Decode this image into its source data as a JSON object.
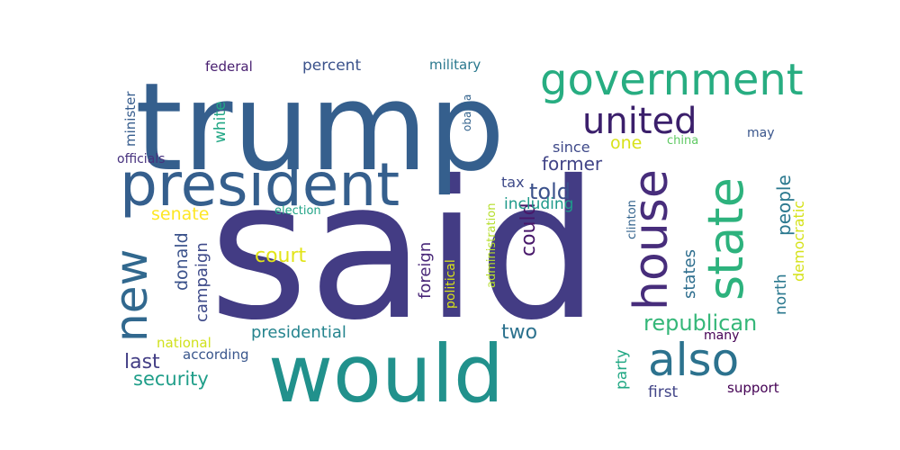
{
  "words": [
    {
      "text": "said",
      "weight": 1.0,
      "color": "#433c84",
      "vertical": false
    },
    {
      "text": "trump",
      "weight": 0.74,
      "color": "#355f8d",
      "vertical": false
    },
    {
      "text": "would",
      "weight": 0.55,
      "color": "#21918c",
      "vertical": false
    },
    {
      "text": "president",
      "weight": 0.48,
      "color": "#355f8d",
      "vertical": false
    },
    {
      "text": "house",
      "weight": 0.38,
      "color": "#472d7b",
      "vertical": true
    },
    {
      "text": "state",
      "weight": 0.37,
      "color": "#2db27d",
      "vertical": true
    },
    {
      "text": "government",
      "weight": 0.33,
      "color": "#27ad81",
      "vertical": false
    },
    {
      "text": "new",
      "weight": 0.33,
      "color": "#31688e",
      "vertical": true
    },
    {
      "text": "also",
      "weight": 0.3,
      "color": "#2c728e",
      "vertical": false
    },
    {
      "text": "united",
      "weight": 0.26,
      "color": "#3b1f6b",
      "vertical": false
    },
    {
      "text": "republican",
      "weight": 0.17,
      "color": "#35b779",
      "vertical": false
    },
    {
      "text": "could",
      "weight": 0.15,
      "color": "#48186a",
      "vertical": true
    },
    {
      "text": "people",
      "weight": 0.14,
      "color": "#2a788e",
      "vertical": true
    },
    {
      "text": "told",
      "weight": 0.13,
      "color": "#3b518b",
      "vertical": false
    },
    {
      "text": "former",
      "weight": 0.12,
      "color": "#414487",
      "vertical": false
    },
    {
      "text": "two",
      "weight": 0.12,
      "color": "#2c728e",
      "vertical": false
    },
    {
      "text": "court",
      "weight": 0.12,
      "color": "#e2e418",
      "vertical": false
    },
    {
      "text": "last",
      "weight": 0.12,
      "color": "#433e85",
      "vertical": false
    },
    {
      "text": "security",
      "weight": 0.12,
      "color": "#1f9e89",
      "vertical": false
    },
    {
      "text": "donald",
      "weight": 0.11,
      "color": "#3b528b",
      "vertical": true
    },
    {
      "text": "campaign",
      "weight": 0.11,
      "color": "#3e4a89",
      "vertical": true
    },
    {
      "text": "states",
      "weight": 0.11,
      "color": "#2e6e8e",
      "vertical": true
    },
    {
      "text": "north",
      "weight": 0.11,
      "color": "#2a788e",
      "vertical": true
    },
    {
      "text": "foreign",
      "weight": 0.11,
      "color": "#482677",
      "vertical": true
    },
    {
      "text": "senate",
      "weight": 0.1,
      "color": "#fde725",
      "vertical": false
    },
    {
      "text": "presidential",
      "weight": 0.1,
      "color": "#25848e",
      "vertical": false
    },
    {
      "text": "party",
      "weight": 0.1,
      "color": "#22a884",
      "vertical": true
    },
    {
      "text": "one",
      "weight": 0.1,
      "color": "#d8e219",
      "vertical": false
    },
    {
      "text": "democratic",
      "weight": 0.1,
      "color": "#d5e21a",
      "vertical": true
    },
    {
      "text": "white",
      "weight": 0.09,
      "color": "#22a785",
      "vertical": true
    },
    {
      "text": "including",
      "weight": 0.09,
      "color": "#1f9a8a",
      "vertical": false
    },
    {
      "text": "first",
      "weight": 0.09,
      "color": "#414487",
      "vertical": false
    },
    {
      "text": "percent",
      "weight": 0.09,
      "color": "#3b528b",
      "vertical": false
    },
    {
      "text": "since",
      "weight": 0.08,
      "color": "#3e4989",
      "vertical": false
    },
    {
      "text": "tax",
      "weight": 0.08,
      "color": "#3e4a89",
      "vertical": false
    },
    {
      "text": "minister",
      "weight": 0.08,
      "color": "#365c8d",
      "vertical": true
    },
    {
      "text": "military",
      "weight": 0.08,
      "color": "#2a788e",
      "vertical": false
    },
    {
      "text": "federal",
      "weight": 0.08,
      "color": "#481f70",
      "vertical": false
    },
    {
      "text": "national",
      "weight": 0.08,
      "color": "#d0e11c",
      "vertical": false
    },
    {
      "text": "officials",
      "weight": 0.08,
      "color": "#46317e",
      "vertical": false
    },
    {
      "text": "according",
      "weight": 0.07,
      "color": "#39568c",
      "vertical": false
    },
    {
      "text": "support",
      "weight": 0.07,
      "color": "#440154",
      "vertical": false
    },
    {
      "text": "many",
      "weight": 0.07,
      "color": "#440154",
      "vertical": false
    },
    {
      "text": "may",
      "weight": 0.07,
      "color": "#39558c",
      "vertical": false
    },
    {
      "text": "political",
      "weight": 0.07,
      "color": "#d8e219",
      "vertical": true
    },
    {
      "text": "obama",
      "weight": 0.06,
      "color": "#33638d",
      "vertical": true
    },
    {
      "text": "election",
      "weight": 0.06,
      "color": "#20a386",
      "vertical": false
    },
    {
      "text": "clinton",
      "weight": 0.06,
      "color": "#33638d",
      "vertical": true
    },
    {
      "text": "china",
      "weight": 0.06,
      "color": "#5ec962",
      "vertical": false
    },
    {
      "text": "administration",
      "weight": 0.06,
      "color": "#b5de2b",
      "vertical": true
    }
  ]
}
